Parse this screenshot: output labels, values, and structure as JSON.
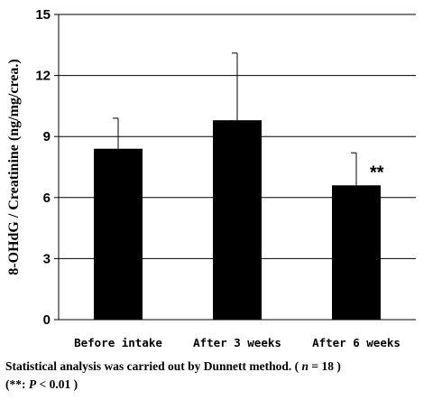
{
  "chart_data": {
    "type": "bar",
    "title": "",
    "xlabel": "",
    "ylabel": "8-OHdG / Creatinine (ng/mg/crea.)",
    "categories": [
      "Before intake",
      "After 3 weeks",
      "After 6 weeks"
    ],
    "series": [
      {
        "values": [
          8.4,
          9.8,
          6.6
        ],
        "error_plus": [
          1.5,
          3.3,
          1.6
        ],
        "color": "#000000"
      }
    ],
    "ylim": [
      0,
      15
    ],
    "yticks": [
      "0",
      "3",
      "6",
      "9",
      "12",
      "15"
    ],
    "grid": true,
    "annotations": [
      {
        "category_index": 2,
        "text": "**"
      }
    ]
  },
  "caption": {
    "line1_prefix": "Statistical analysis was carried out by Dunnett method. ( ",
    "line1_n": "n",
    "line1_suffix": " = 18 )",
    "line2_prefix": "(**: ",
    "line2_p": "P",
    "line2_suffix": " < 0.01 )"
  }
}
